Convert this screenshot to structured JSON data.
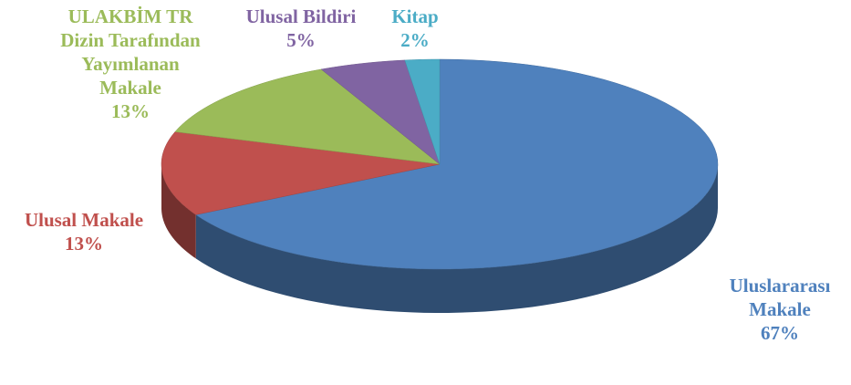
{
  "chart_data": {
    "type": "pie",
    "categories": [
      "Uluslararası Makale",
      "Ulusal Makale",
      "ULAKBİM TR Dizin Tarafından Yayımlanan Makale",
      "Ulusal Bildiri",
      "Kitap"
    ],
    "values": [
      67,
      13,
      13,
      5,
      2
    ],
    "value_labels": [
      "67%",
      "13%",
      "13%",
      "5%",
      "2%"
    ],
    "colors": [
      "#4f81bd",
      "#c0504d",
      "#9bbb59",
      "#8064a2",
      "#4bacc6"
    ]
  }
}
